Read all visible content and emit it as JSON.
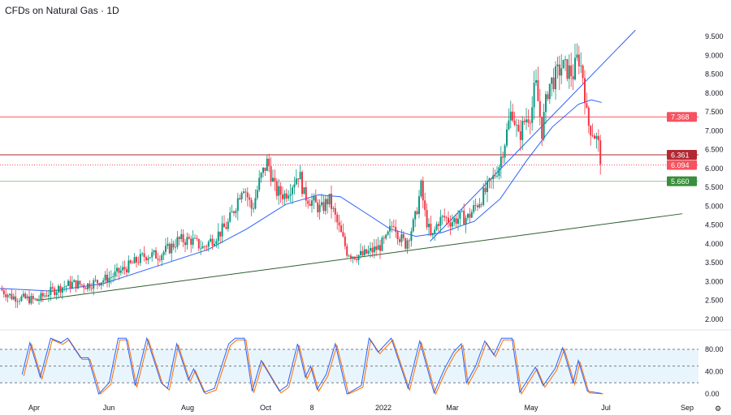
{
  "chart_data": {
    "type": "candlestick",
    "title": "CFDs on Natural Gas · 1D",
    "ylim": [
      2.0,
      9.5
    ],
    "y_ticks": [
      "9.500",
      "9.000",
      "8.500",
      "8.000",
      "7.500",
      "7.000",
      "6.500",
      "6.000",
      "5.500",
      "5.000",
      "4.500",
      "4.000",
      "3.500",
      "3.000",
      "2.500",
      "2.000"
    ],
    "x_ticks": [
      "Apr",
      "Jun",
      "Aug",
      "Oct",
      "8",
      "2022",
      "Mar",
      "May",
      "Jul",
      "Sep"
    ],
    "price_series_day_close": [
      [
        0,
        2.8
      ],
      [
        9,
        2.6
      ],
      [
        19,
        2.55
      ],
      [
        28,
        2.5
      ],
      [
        37,
        2.7
      ],
      [
        47,
        2.85
      ],
      [
        56,
        2.95
      ],
      [
        66,
        2.9
      ],
      [
        75,
        3.0
      ],
      [
        84,
        3.1
      ],
      [
        94,
        3.3
      ],
      [
        103,
        3.5
      ],
      [
        112,
        3.7
      ],
      [
        122,
        3.7
      ],
      [
        131,
        3.9
      ],
      [
        137,
        4.1
      ],
      [
        147,
        4.1
      ],
      [
        156,
        3.9
      ],
      [
        166,
        4.2
      ],
      [
        175,
        4.5
      ],
      [
        181,
        5.0
      ],
      [
        187,
        5.6
      ],
      [
        194,
        4.9
      ],
      [
        200,
        5.7
      ],
      [
        206,
        6.2
      ],
      [
        212,
        5.4
      ],
      [
        219,
        5.3
      ],
      [
        225,
        5.6
      ],
      [
        230,
        5.9
      ],
      [
        234,
        5.3
      ],
      [
        241,
        5.1
      ],
      [
        247,
        4.9
      ],
      [
        253,
        5.2
      ],
      [
        257,
        4.8
      ],
      [
        262,
        4.3
      ],
      [
        267,
        3.8
      ],
      [
        272,
        3.7
      ],
      [
        279,
        3.7
      ],
      [
        285,
        3.8
      ],
      [
        291,
        3.9
      ],
      [
        297,
        4.1
      ],
      [
        303,
        4.6
      ],
      [
        307,
        4.2
      ],
      [
        312,
        4.0
      ],
      [
        319,
        4.6
      ],
      [
        324,
        5.5
      ],
      [
        327,
        4.8
      ],
      [
        332,
        4.1
      ],
      [
        337,
        4.6
      ],
      [
        342,
        4.7
      ],
      [
        347,
        4.6
      ],
      [
        354,
        4.7
      ],
      [
        360,
        4.7
      ],
      [
        366,
        5.0
      ],
      [
        372,
        5.3
      ],
      [
        379,
        5.7
      ],
      [
        384,
        6.1
      ],
      [
        389,
        6.8
      ],
      [
        394,
        7.6
      ],
      [
        399,
        6.8
      ],
      [
        404,
        7.3
      ],
      [
        409,
        7.5
      ],
      [
        412,
        8.3
      ],
      [
        417,
        7.0
      ],
      [
        422,
        8.2
      ],
      [
        427,
        8.4
      ],
      [
        432,
        8.7
      ],
      [
        437,
        8.6
      ],
      [
        441,
        8.5
      ],
      [
        445,
        9.0
      ],
      [
        449,
        8.4
      ],
      [
        452,
        7.2
      ],
      [
        456,
        7.0
      ],
      [
        460,
        6.7
      ],
      [
        463,
        6.09
      ]
    ],
    "moving_average_day_value": [
      [
        0,
        2.82
      ],
      [
        40,
        2.75
      ],
      [
        80,
        2.95
      ],
      [
        120,
        3.4
      ],
      [
        160,
        3.85
      ],
      [
        190,
        4.4
      ],
      [
        220,
        5.05
      ],
      [
        245,
        5.3
      ],
      [
        262,
        5.25
      ],
      [
        280,
        4.85
      ],
      [
        300,
        4.4
      ],
      [
        320,
        4.2
      ],
      [
        340,
        4.3
      ],
      [
        365,
        4.6
      ],
      [
        385,
        5.2
      ],
      [
        405,
        6.2
      ],
      [
        425,
        7.1
      ],
      [
        445,
        7.7
      ],
      [
        455,
        7.82
      ],
      [
        463,
        7.75
      ]
    ],
    "levels": [
      {
        "label": "7.368",
        "value": 7.368,
        "color": "#f7525f",
        "style": "solid"
      },
      {
        "label": "6.361",
        "value": 6.361,
        "color": "#b22833",
        "style": "solid"
      },
      {
        "label": "6.094",
        "value": 6.094,
        "color": "#f7525f",
        "style": "dotted"
      },
      {
        "label": "5.660",
        "value": 5.66,
        "color": "#388e3c",
        "style": "solid"
      }
    ],
    "trendlines": [
      {
        "name": "support",
        "from": [
          28,
          2.5
        ],
        "to": [
          525,
          4.8
        ],
        "color": "#2e5e2e"
      },
      {
        "name": "uptrend",
        "from": [
          331,
          4.07
        ],
        "to": [
          489,
          9.67
        ],
        "color": "#2962ff"
      }
    ],
    "stochastic": {
      "y_ticks": [
        "80.00",
        "40.00",
        "0.00"
      ],
      "ylim": [
        0,
        100
      ],
      "band": [
        20,
        80
      ],
      "k_day_value": [
        [
          17,
          35
        ],
        [
          23,
          92
        ],
        [
          31,
          30
        ],
        [
          39,
          100
        ],
        [
          47,
          92
        ],
        [
          52,
          100
        ],
        [
          62,
          65
        ],
        [
          68,
          65
        ],
        [
          76,
          0
        ],
        [
          84,
          20
        ],
        [
          91,
          100
        ],
        [
          97,
          100
        ],
        [
          104,
          15
        ],
        [
          113,
          100
        ],
        [
          124,
          20
        ],
        [
          129,
          10
        ],
        [
          136,
          90
        ],
        [
          145,
          25
        ],
        [
          149,
          45
        ],
        [
          157,
          3
        ],
        [
          165,
          10
        ],
        [
          176,
          90
        ],
        [
          181,
          100
        ],
        [
          188,
          100
        ],
        [
          194,
          5
        ],
        [
          201,
          60
        ],
        [
          206,
          40
        ],
        [
          215,
          5
        ],
        [
          221,
          15
        ],
        [
          229,
          90
        ],
        [
          235,
          30
        ],
        [
          239,
          50
        ],
        [
          244,
          8
        ],
        [
          251,
          35
        ],
        [
          258,
          90
        ],
        [
          267,
          0
        ],
        [
          278,
          15
        ],
        [
          284,
          100
        ],
        [
          291,
          75
        ],
        [
          301,
          100
        ],
        [
          314,
          10
        ],
        [
          323,
          95
        ],
        [
          334,
          2
        ],
        [
          342,
          45
        ],
        [
          349,
          75
        ],
        [
          355,
          90
        ],
        [
          359,
          20
        ],
        [
          366,
          50
        ],
        [
          373,
          95
        ],
        [
          380,
          70
        ],
        [
          386,
          100
        ],
        [
          394,
          100
        ],
        [
          400,
          3
        ],
        [
          412,
          48
        ],
        [
          418,
          15
        ],
        [
          427,
          45
        ],
        [
          433,
          83
        ],
        [
          441,
          20
        ],
        [
          445,
          60
        ],
        [
          452,
          5
        ],
        [
          463,
          1
        ]
      ]
    }
  }
}
